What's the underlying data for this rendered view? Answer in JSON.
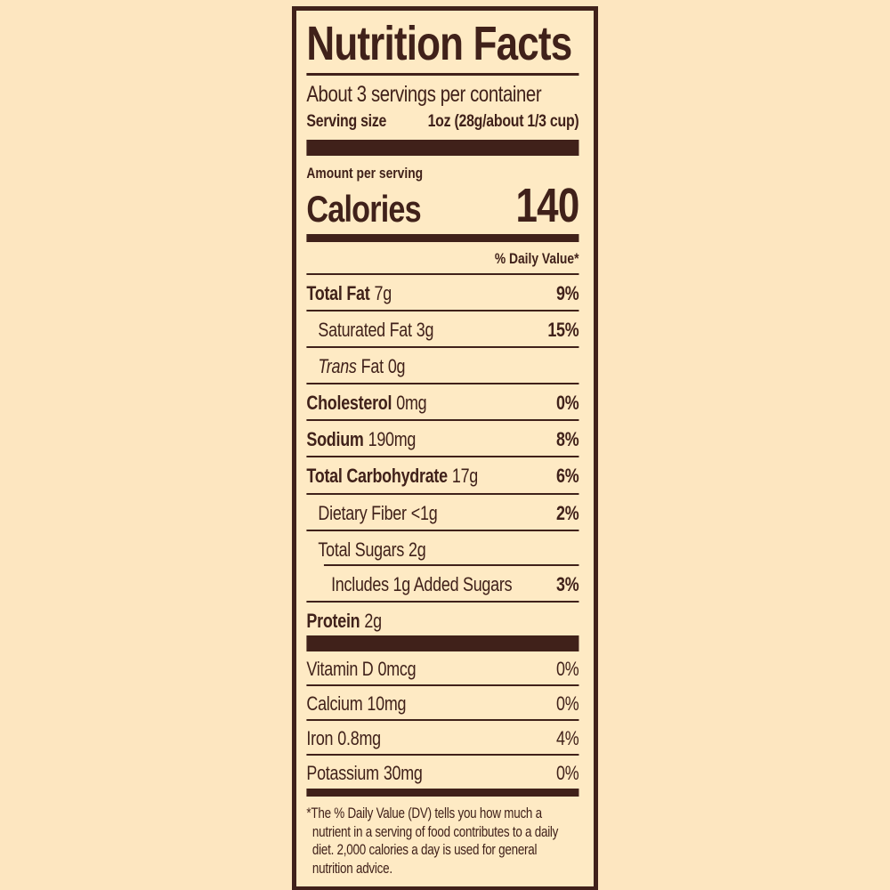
{
  "label": {
    "title": "Nutrition Facts",
    "servings_per_container": "About 3 servings per container",
    "serving_size": {
      "label": "Serving size",
      "value": "1oz (28g/about 1/3 cup)"
    },
    "amount_per_serving": "Amount per serving",
    "calories": {
      "label": "Calories",
      "value": "140"
    },
    "daily_value_header": "% Daily Value*",
    "nutrients": [
      {
        "name": "Total Fat",
        "amount": "7g",
        "dv": "9%"
      },
      {
        "name": "Saturated Fat",
        "amount": "3g",
        "dv": "15%"
      },
      {
        "name_italic": "Trans",
        "name": "Fat",
        "amount": "0g",
        "dv": ""
      },
      {
        "name": "Cholesterol",
        "amount": "0mg",
        "dv": "0%"
      },
      {
        "name": "Sodium",
        "amount": "190mg",
        "dv": "8%"
      },
      {
        "name": "Total Carbohydrate",
        "amount": "17g",
        "dv": "6%"
      },
      {
        "name": "Dietary Fiber",
        "amount": "<1g",
        "dv": "2%"
      },
      {
        "name": "Total Sugars",
        "amount": "2g",
        "dv": ""
      },
      {
        "name": "Includes 1g Added Sugars",
        "amount": "",
        "dv": "3%"
      },
      {
        "name": "Protein",
        "amount": "2g",
        "dv": ""
      }
    ],
    "micronutrients": [
      {
        "name": "Vitamin D",
        "amount": "0mcg",
        "dv": "0%"
      },
      {
        "name": "Calcium",
        "amount": "10mg",
        "dv": "0%"
      },
      {
        "name": "Iron",
        "amount": "0.8mg",
        "dv": "4%"
      },
      {
        "name": "Potassium",
        "amount": "30mg",
        "dv": "0%"
      }
    ],
    "footnote": "*The % Daily Value (DV) tells you how much a nutrient in a serving of food contributes to a daily diet. 2,000 calories a day is used for general nutrition advice.",
    "colors": {
      "text_and_rules": "#40211a",
      "label_background": "#feeac4",
      "page_background": "#fde6c0"
    }
  }
}
